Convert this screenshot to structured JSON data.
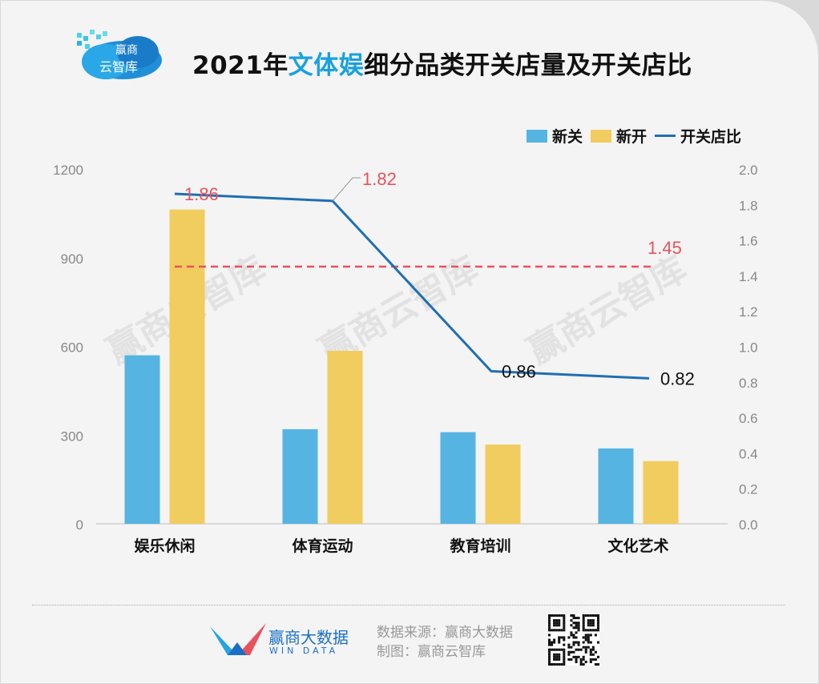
{
  "header": {
    "title_prefix": "2021年",
    "title_highlight": "文体娱",
    "title_suffix": "细分品类开关店量及开关店比",
    "logo_text_1": "赢商",
    "logo_text_2": "云智库"
  },
  "watermark": "赢商云智库",
  "legend": {
    "closed": "新关",
    "opened": "新开",
    "ratio": "开关店比"
  },
  "colors": {
    "closed": "#56b4e2",
    "opened": "#f1cc5e",
    "ratio": "#1f6fb3",
    "avg": "#e8525c",
    "accent": "#1aa1dc"
  },
  "chart_data": {
    "type": "bar",
    "categories": [
      "娱乐休闲",
      "体育运动",
      "教育培训",
      "文化艺术"
    ],
    "series": [
      {
        "name": "新关",
        "values": [
          570,
          320,
          310,
          255
        ]
      },
      {
        "name": "新开",
        "values": [
          1063,
          585,
          268,
          212
        ]
      }
    ],
    "line_series": {
      "name": "开关店比",
      "values": [
        1.86,
        1.82,
        0.86,
        0.82
      ]
    },
    "reference_line": {
      "value": 1.45,
      "label": "1.45"
    },
    "left_axis": {
      "ylim": [
        0,
        1200
      ],
      "ticks": [
        "0",
        "300",
        "600",
        "900",
        "1200"
      ]
    },
    "right_axis": {
      "ylim": [
        0,
        2.0
      ],
      "ticks": [
        "0.0",
        "0.2",
        "0.4",
        "0.6",
        "0.8",
        "1.0",
        "1.2",
        "1.4",
        "1.6",
        "1.8",
        "2.0"
      ]
    },
    "line_labels": [
      "1.86",
      "1.82",
      "0.86",
      "0.82"
    ]
  },
  "footer": {
    "brand_name": "赢商大数据",
    "brand_sub": "WIN DATA",
    "source": "数据来源：赢商大数据",
    "made_by": "制图：赢商云智库"
  }
}
